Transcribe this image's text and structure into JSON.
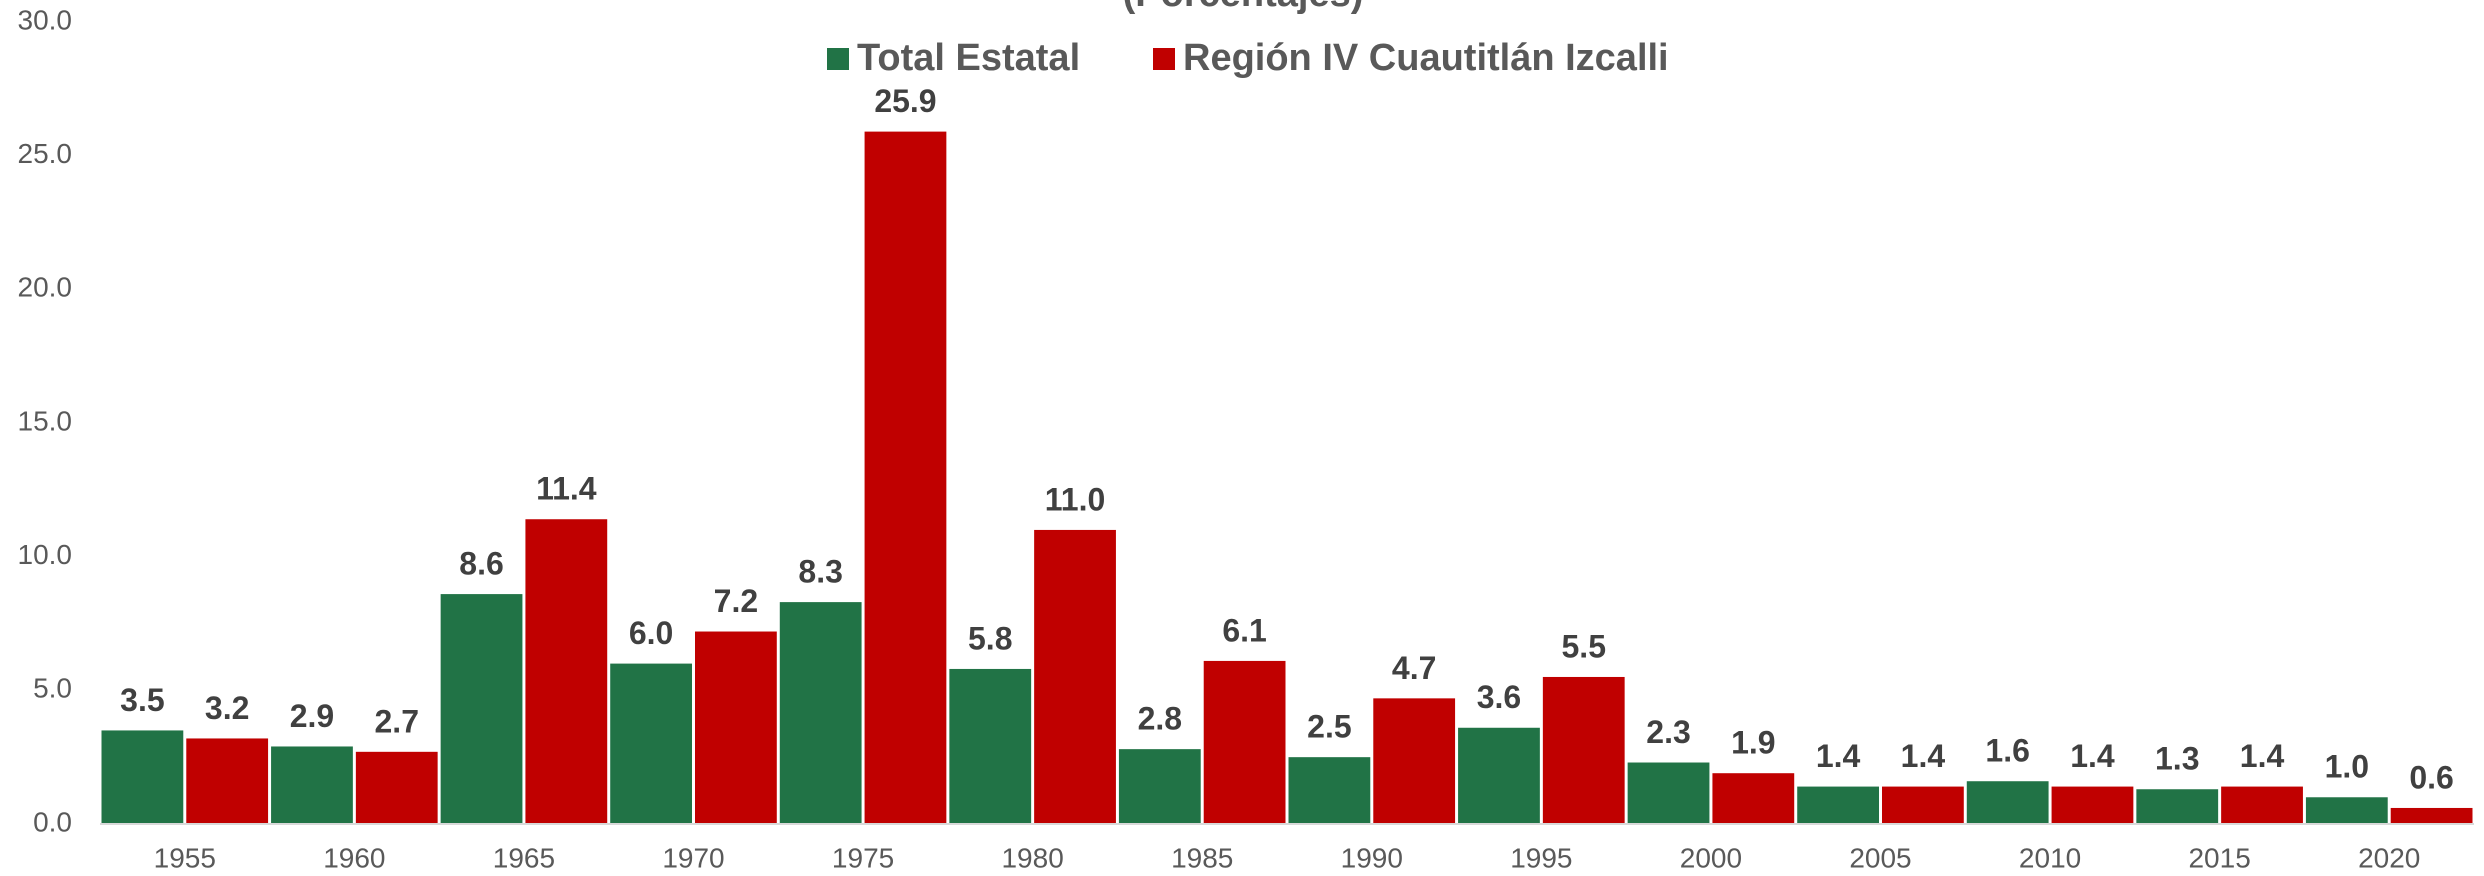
{
  "chart_data": {
    "type": "bar",
    "subtitle": "(Porcentajes)",
    "categories": [
      "1955",
      "1960",
      "1965",
      "1970",
      "1975",
      "1980",
      "1985",
      "1990",
      "1995",
      "2000",
      "2005",
      "2010",
      "2015",
      "2020"
    ],
    "series": [
      {
        "name": "Total Estatal",
        "color": "#217346",
        "values": [
          3.5,
          2.9,
          8.6,
          6.0,
          8.3,
          5.8,
          2.8,
          2.5,
          3.6,
          2.3,
          1.4,
          1.6,
          1.3,
          1.0
        ],
        "value_labels": [
          "3.5",
          "2.9",
          "8.6",
          "6.0",
          "8.3",
          "5.8",
          "2.8",
          "2.5",
          "3.6",
          "2.3",
          "1.4",
          "1.6",
          "1.3",
          "1.0"
        ]
      },
      {
        "name": "Región IV Cuautitlán Izcalli",
        "color": "#c00000",
        "values": [
          3.2,
          2.7,
          11.4,
          7.2,
          25.9,
          11.0,
          6.1,
          4.7,
          5.5,
          1.9,
          1.4,
          1.4,
          1.4,
          0.6
        ],
        "value_labels": [
          "3.2",
          "2.7",
          "11.4",
          "7.2",
          "25.9",
          "11.0",
          "6.1",
          "4.7",
          "5.5",
          "1.9",
          "1.4",
          "1.4",
          "1.4",
          "0.6"
        ]
      }
    ],
    "ylim": [
      0,
      30
    ],
    "yticks": [
      {
        "value": 0,
        "label": "0.0"
      },
      {
        "value": 5,
        "label": "5.0"
      },
      {
        "value": 10,
        "label": "10.0"
      },
      {
        "value": 15,
        "label": "15.0"
      },
      {
        "value": 20,
        "label": "20.0"
      },
      {
        "value": 25,
        "label": "25.0"
      },
      {
        "value": 30,
        "label": "30.0"
      }
    ],
    "grid": false
  }
}
